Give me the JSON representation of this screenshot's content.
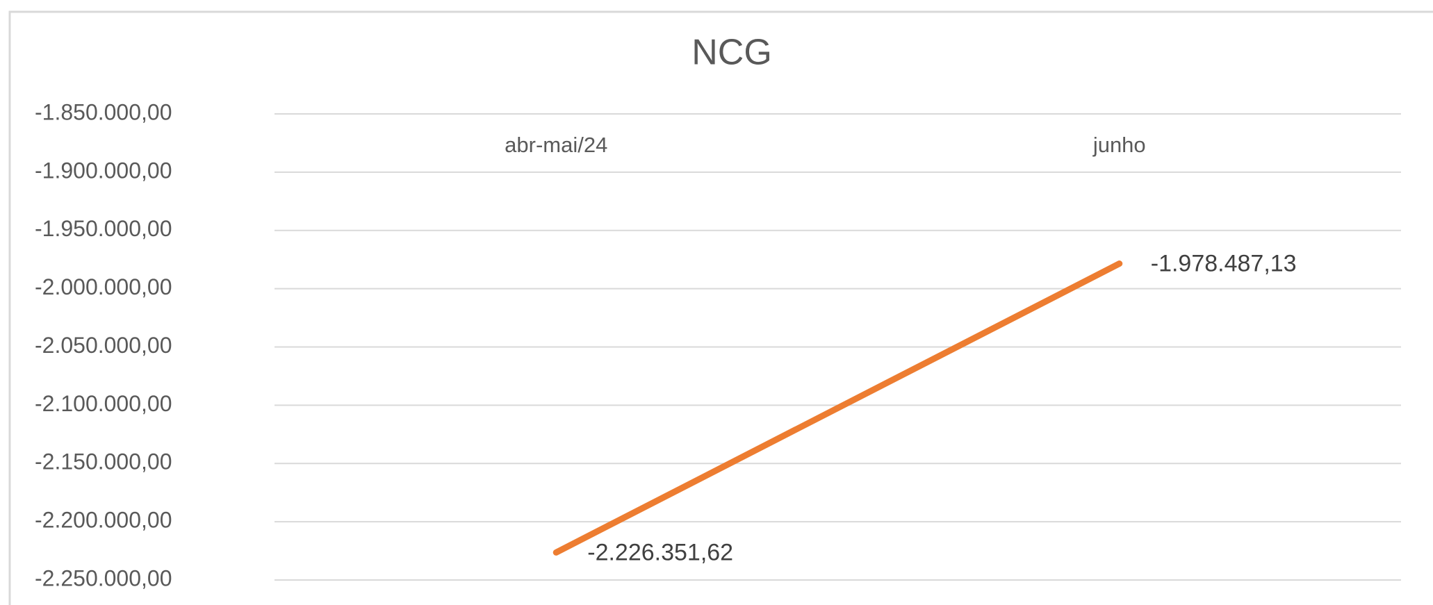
{
  "chart_data": {
    "type": "line",
    "title": "NCG",
    "categories": [
      "abr-mai/24",
      "junho"
    ],
    "series": [
      {
        "name": "NCG",
        "color": "#ed7d31",
        "values": [
          -2226351.62,
          -1978487.13
        ],
        "value_labels": [
          "-2.226.351,62",
          "-1.978.487,13"
        ]
      }
    ],
    "ylim": [
      -2250000,
      -1850000
    ],
    "yticks": [
      {
        "value": -1850000,
        "label": "-1.850.000,00"
      },
      {
        "value": -1900000,
        "label": "-1.900.000,00"
      },
      {
        "value": -1950000,
        "label": "-1.950.000,00"
      },
      {
        "value": -2000000,
        "label": "-2.000.000,00"
      },
      {
        "value": -2050000,
        "label": "-2.050.000,00"
      },
      {
        "value": -2100000,
        "label": "-2.100.000,00"
      },
      {
        "value": -2150000,
        "label": "-2.150.000,00"
      },
      {
        "value": -2200000,
        "label": "-2.200.000,00"
      },
      {
        "value": -2250000,
        "label": "-2.250.000,00"
      }
    ],
    "grid": true
  }
}
